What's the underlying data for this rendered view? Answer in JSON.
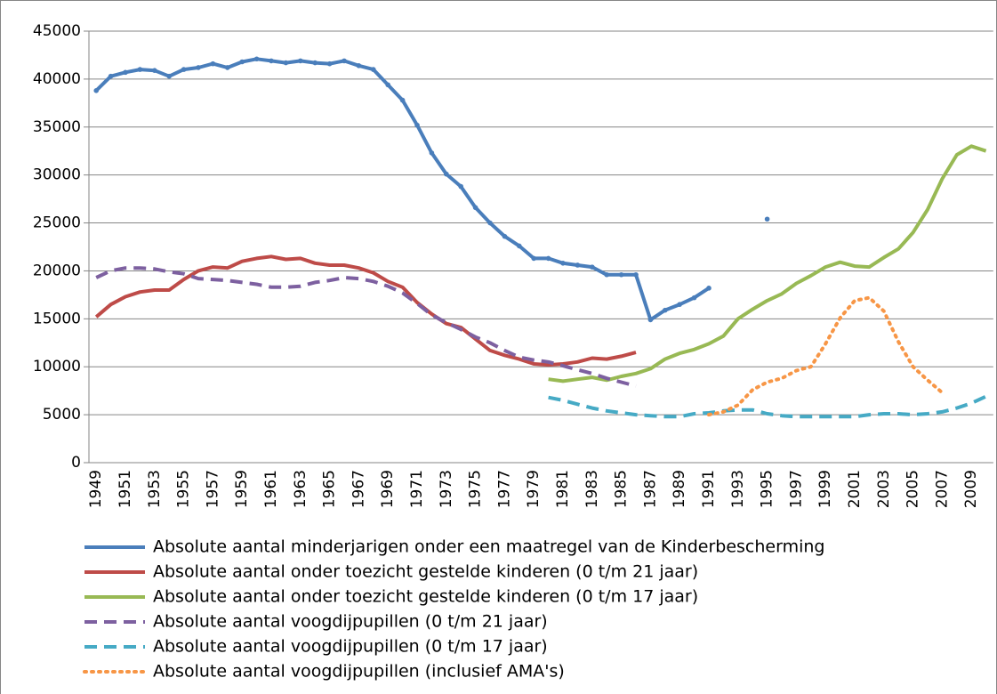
{
  "chart_data": {
    "type": "line",
    "categories": [
      "1949",
      null,
      "1951",
      null,
      "1953",
      null,
      "1955",
      null,
      "1957",
      null,
      "1959",
      null,
      "1961",
      null,
      "1963",
      null,
      "1965",
      null,
      "1967",
      null,
      "1969",
      null,
      "1971",
      null,
      "1973",
      null,
      "1975",
      null,
      "1977",
      null,
      "1979",
      null,
      "1981",
      null,
      "1983",
      null,
      "1985",
      null,
      "1987",
      null,
      "1989",
      null,
      "1991",
      null,
      "1993",
      null,
      "1995",
      null,
      "1997",
      null,
      "1999",
      null,
      "2001",
      null,
      "2003",
      null,
      "2005",
      null,
      "2007",
      null,
      "2009",
      null
    ],
    "series": [
      {
        "name": "Absolute aantal minderjarigen onder een maatregel van de Kinderbescherming",
        "color": "#4a7ebb",
        "dash": "solid",
        "marker": "point",
        "values": [
          38800,
          40300,
          40700,
          41000,
          40900,
          40300,
          41000,
          41200,
          41600,
          41200,
          41800,
          42100,
          41900,
          41700,
          41900,
          41700,
          41600,
          41900,
          41400,
          41000,
          39400,
          37800,
          35200,
          32300,
          30100,
          28800,
          26600,
          25000,
          23600,
          22600,
          21300,
          21300,
          20800,
          20600,
          20400,
          19600,
          19600,
          19600,
          14900,
          15900,
          16500,
          17200,
          18200,
          null,
          null,
          null,
          25400,
          null,
          null,
          null,
          null,
          null,
          null,
          null,
          null,
          null,
          null,
          null,
          null,
          null,
          null,
          null
        ]
      },
      {
        "name": "Absolute aantal onder toezicht gestelde kinderen (0 t/m 21 jaar)",
        "color": "#be4b48",
        "dash": "solid",
        "values": [
          15200,
          16500,
          17300,
          17800,
          18000,
          18000,
          19100,
          20000,
          20400,
          20300,
          21000,
          21300,
          21500,
          21200,
          21300,
          20800,
          20600,
          20600,
          20300,
          19800,
          18900,
          18300,
          16700,
          15500,
          14500,
          14100,
          12900,
          11700,
          11200,
          10800,
          10300,
          10200,
          10300,
          10500,
          10900,
          10800,
          11100,
          11500,
          null,
          null,
          null,
          null,
          null,
          null,
          null,
          null,
          null,
          null,
          null,
          null,
          null,
          null,
          null,
          null,
          null,
          null,
          null,
          null,
          null,
          null,
          null,
          null
        ]
      },
      {
        "name": "Absolute aantal onder toezicht gestelde kinderen (0 t/m 17 jaar)",
        "color": "#98b954",
        "dash": "solid",
        "values": [
          null,
          null,
          null,
          null,
          null,
          null,
          null,
          null,
          null,
          null,
          null,
          null,
          null,
          null,
          null,
          null,
          null,
          null,
          null,
          null,
          null,
          null,
          null,
          null,
          null,
          null,
          null,
          null,
          null,
          null,
          null,
          8700,
          8500,
          8700,
          8900,
          8600,
          9000,
          9300,
          9800,
          10800,
          11400,
          11800,
          12400,
          13200,
          15000,
          16000,
          16900,
          17600,
          18700,
          19500,
          20400,
          20900,
          20500,
          20400,
          21400,
          22300,
          24000,
          26400,
          29600,
          32100,
          33000,
          32500
        ]
      },
      {
        "name": "Absolute aantal voogdijpupillen  (0 t/m 21 jaar)",
        "color": "#7d60a0",
        "dash": "dash",
        "values": [
          19300,
          20000,
          20300,
          20300,
          20200,
          19900,
          19700,
          19200,
          19100,
          19000,
          18800,
          18600,
          18300,
          18300,
          18400,
          18800,
          19000,
          19300,
          19200,
          18900,
          18400,
          17700,
          16600,
          15400,
          14600,
          13900,
          13100,
          12500,
          11700,
          11000,
          10700,
          10500,
          10100,
          9700,
          9300,
          8800,
          8400,
          8000,
          null,
          null,
          null,
          null,
          null,
          null,
          null,
          null,
          null,
          null,
          null,
          null,
          null,
          null,
          null,
          null,
          null,
          null,
          null,
          null,
          null,
          null,
          null,
          null
        ]
      },
      {
        "name": "Absolute aantal voogdijpupillen  (0 t/m 17 jaar)",
        "color": "#46aac5",
        "dash": "dash",
        "values": [
          null,
          null,
          null,
          null,
          null,
          null,
          null,
          null,
          null,
          null,
          null,
          null,
          null,
          null,
          null,
          null,
          null,
          null,
          null,
          null,
          null,
          null,
          null,
          null,
          null,
          null,
          null,
          null,
          null,
          null,
          null,
          6800,
          6500,
          6100,
          5700,
          5400,
          5200,
          5000,
          4900,
          4800,
          4800,
          5100,
          5200,
          5400,
          5500,
          5500,
          5100,
          4900,
          4800,
          4800,
          4800,
          4800,
          4800,
          5000,
          5100,
          5100,
          5000,
          5100,
          5300,
          5700,
          6200,
          6900
        ]
      },
      {
        "name": "Absolute aantal voogdijpupillen (inclusief AMA's)",
        "color": "#f79646",
        "dash": "dot",
        "values": [
          null,
          null,
          null,
          null,
          null,
          null,
          null,
          null,
          null,
          null,
          null,
          null,
          null,
          null,
          null,
          null,
          null,
          null,
          null,
          null,
          null,
          null,
          null,
          null,
          null,
          null,
          null,
          null,
          null,
          null,
          null,
          null,
          null,
          null,
          null,
          null,
          null,
          null,
          null,
          null,
          null,
          null,
          5000,
          5300,
          6000,
          7600,
          8400,
          8800,
          9600,
          10000,
          12400,
          15100,
          16900,
          17200,
          15800,
          12600,
          10000,
          8600,
          7300,
          null,
          null,
          null
        ]
      }
    ],
    "ylim": [
      0,
      45000
    ],
    "yticks": [
      0,
      5000,
      10000,
      15000,
      20000,
      25000,
      30000,
      35000,
      40000,
      45000
    ],
    "grid": true
  }
}
